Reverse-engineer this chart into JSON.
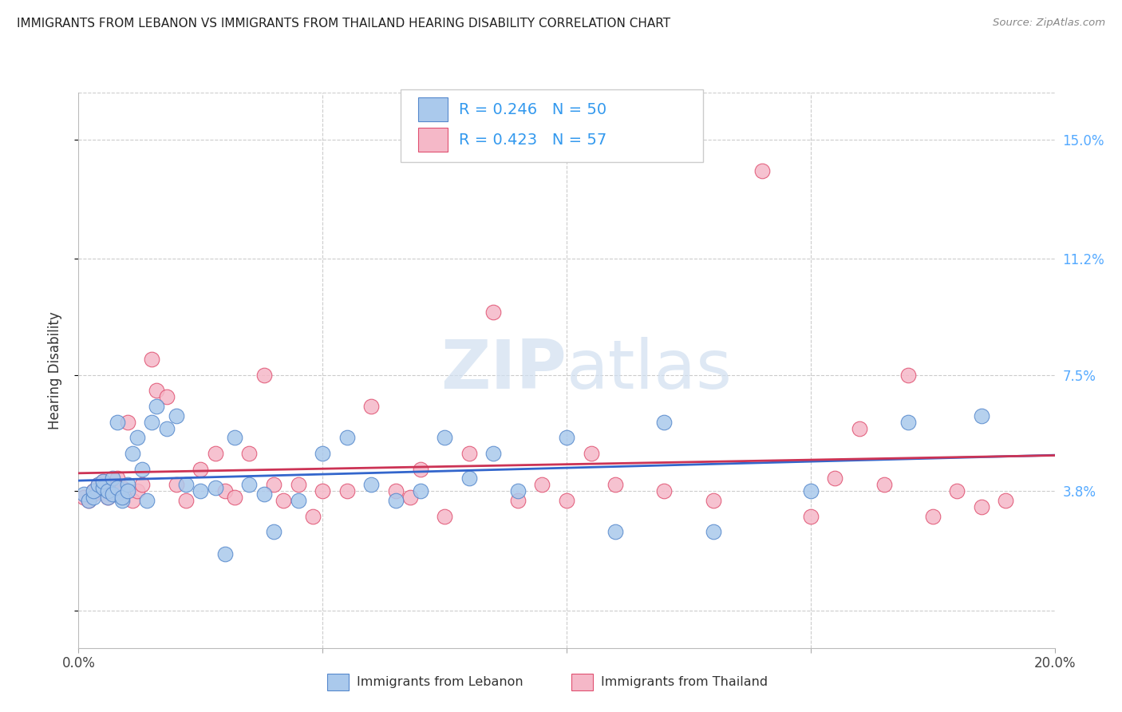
{
  "title": "IMMIGRANTS FROM LEBANON VS IMMIGRANTS FROM THAILAND HEARING DISABILITY CORRELATION CHART",
  "source": "Source: ZipAtlas.com",
  "ylabel": "Hearing Disability",
  "xlim": [
    0.0,
    0.2
  ],
  "ylim": [
    -0.012,
    0.165
  ],
  "yticks": [
    0.0,
    0.038,
    0.075,
    0.112,
    0.15
  ],
  "ytick_labels": [
    "",
    "3.8%",
    "7.5%",
    "11.2%",
    "15.0%"
  ],
  "xticks": [
    0.0,
    0.05,
    0.1,
    0.15,
    0.2
  ],
  "xtick_labels_show": [
    "0.0%",
    "20.0%"
  ],
  "legend_r1_val": "0.246",
  "legend_n1_val": "50",
  "legend_r2_val": "0.423",
  "legend_n2_val": "57",
  "color_lebanon_fill": "#aac9ec",
  "color_lebanon_edge": "#5588cc",
  "color_thailand_fill": "#f5b8c8",
  "color_thailand_edge": "#e05070",
  "color_line_lebanon": "#3366cc",
  "color_line_thailand": "#cc3355",
  "watermark_color": "#d0dff0",
  "grid_color": "#cccccc",
  "label_lebanon": "Immigrants from Lebanon",
  "label_thailand": "Immigrants from Thailand",
  "lebanon_x": [
    0.001,
    0.002,
    0.003,
    0.003,
    0.004,
    0.005,
    0.005,
    0.006,
    0.006,
    0.007,
    0.007,
    0.008,
    0.008,
    0.009,
    0.009,
    0.01,
    0.01,
    0.011,
    0.012,
    0.013,
    0.014,
    0.015,
    0.016,
    0.018,
    0.02,
    0.022,
    0.025,
    0.028,
    0.03,
    0.032,
    0.035,
    0.038,
    0.04,
    0.045,
    0.05,
    0.055,
    0.06,
    0.065,
    0.07,
    0.075,
    0.08,
    0.085,
    0.09,
    0.1,
    0.11,
    0.12,
    0.13,
    0.15,
    0.17,
    0.185
  ],
  "lebanon_y": [
    0.037,
    0.035,
    0.036,
    0.038,
    0.04,
    0.039,
    0.041,
    0.036,
    0.038,
    0.042,
    0.037,
    0.039,
    0.06,
    0.035,
    0.036,
    0.04,
    0.038,
    0.05,
    0.055,
    0.045,
    0.035,
    0.06,
    0.065,
    0.058,
    0.062,
    0.04,
    0.038,
    0.039,
    0.018,
    0.055,
    0.04,
    0.037,
    0.025,
    0.035,
    0.05,
    0.055,
    0.04,
    0.035,
    0.038,
    0.055,
    0.042,
    0.05,
    0.038,
    0.055,
    0.025,
    0.06,
    0.025,
    0.038,
    0.06,
    0.062
  ],
  "thailand_x": [
    0.001,
    0.002,
    0.003,
    0.003,
    0.004,
    0.005,
    0.005,
    0.006,
    0.007,
    0.008,
    0.008,
    0.009,
    0.01,
    0.011,
    0.012,
    0.013,
    0.015,
    0.016,
    0.018,
    0.02,
    0.022,
    0.025,
    0.028,
    0.03,
    0.032,
    0.035,
    0.038,
    0.04,
    0.042,
    0.045,
    0.048,
    0.05,
    0.055,
    0.06,
    0.065,
    0.068,
    0.07,
    0.075,
    0.08,
    0.085,
    0.09,
    0.095,
    0.1,
    0.105,
    0.11,
    0.12,
    0.13,
    0.14,
    0.15,
    0.155,
    0.16,
    0.165,
    0.17,
    0.175,
    0.18,
    0.185,
    0.19
  ],
  "thailand_y": [
    0.036,
    0.035,
    0.037,
    0.038,
    0.04,
    0.039,
    0.041,
    0.036,
    0.038,
    0.042,
    0.037,
    0.039,
    0.06,
    0.035,
    0.038,
    0.04,
    0.08,
    0.07,
    0.068,
    0.04,
    0.035,
    0.045,
    0.05,
    0.038,
    0.036,
    0.05,
    0.075,
    0.04,
    0.035,
    0.04,
    0.03,
    0.038,
    0.038,
    0.065,
    0.038,
    0.036,
    0.045,
    0.03,
    0.05,
    0.095,
    0.035,
    0.04,
    0.035,
    0.05,
    0.04,
    0.038,
    0.035,
    0.14,
    0.03,
    0.042,
    0.058,
    0.04,
    0.075,
    0.03,
    0.038,
    0.033,
    0.035
  ]
}
